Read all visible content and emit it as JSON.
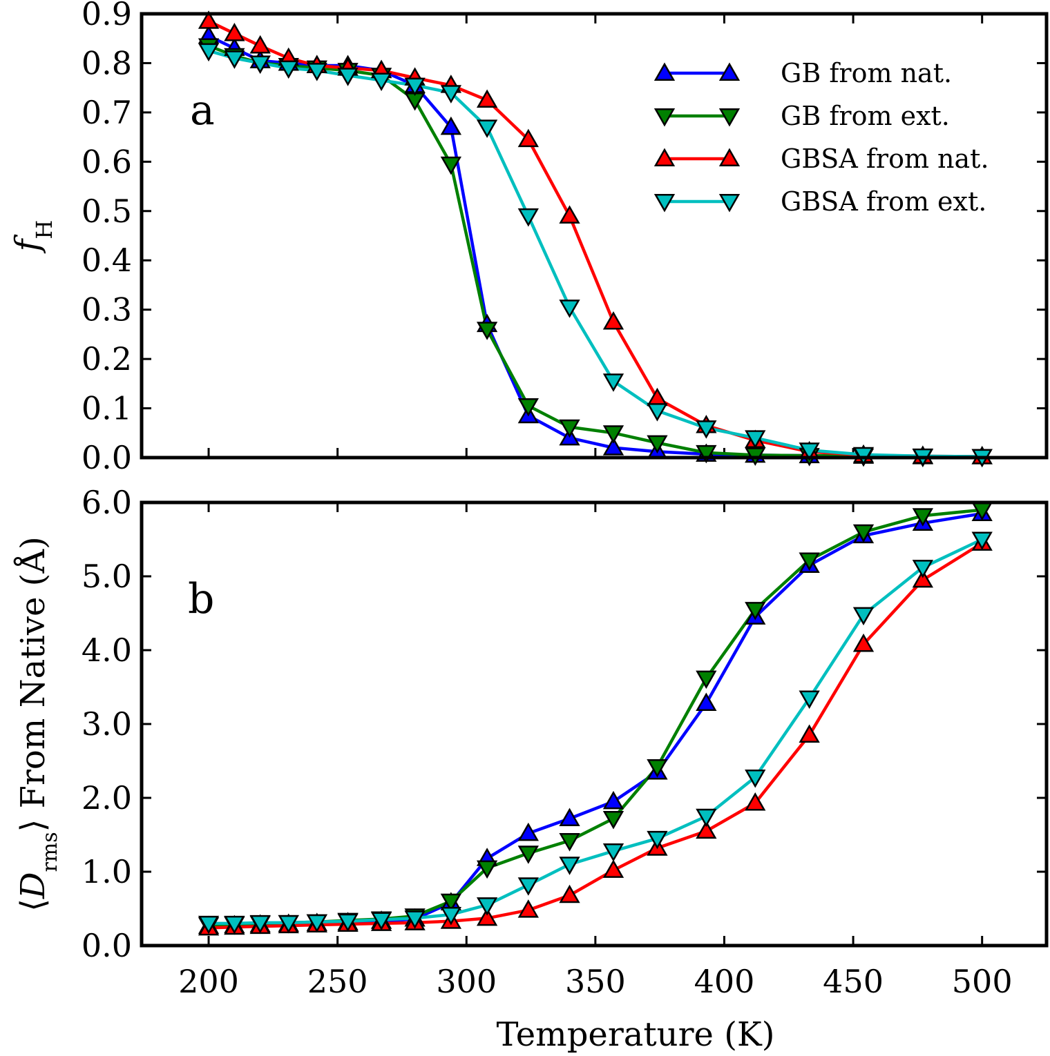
{
  "chart_data": [
    {
      "panel": "a",
      "type": "line",
      "ylabel_symbol": "f",
      "ylabel_subscript": "H",
      "ylim": [
        0.0,
        0.9
      ],
      "yticks": [
        "0.0",
        "0.1",
        "0.2",
        "0.3",
        "0.4",
        "0.5",
        "0.6",
        "0.7",
        "0.8",
        "0.9"
      ],
      "xlim": [
        174,
        525
      ],
      "x": [
        200,
        210,
        220,
        231,
        242,
        254,
        267,
        280,
        294,
        308,
        324,
        340,
        357,
        374,
        393,
        412,
        433,
        454,
        477,
        500
      ],
      "legend_position": "top-right",
      "series": [
        {
          "name": "GB from nat.",
          "color": "#0000ff",
          "marker": "triangle-up",
          "values": [
            0.855,
            0.83,
            0.805,
            0.8,
            0.795,
            0.795,
            0.785,
            0.755,
            0.67,
            0.27,
            0.085,
            0.04,
            0.02,
            0.012,
            0.007,
            0.005,
            0.004,
            0.003,
            0.002,
            0.002
          ]
        },
        {
          "name": "GB from ext.",
          "color": "#008000",
          "marker": "triangle-down",
          "values": [
            0.835,
            0.815,
            0.8,
            0.795,
            0.79,
            0.785,
            0.775,
            0.725,
            0.595,
            0.26,
            0.105,
            0.062,
            0.05,
            0.03,
            0.01,
            0.005,
            0.004,
            0.003,
            0.002,
            0.002
          ]
        },
        {
          "name": "GBSA from nat.",
          "color": "#ff0000",
          "marker": "triangle-up",
          "values": [
            0.885,
            0.86,
            0.835,
            0.81,
            0.795,
            0.79,
            0.785,
            0.77,
            0.755,
            0.725,
            0.645,
            0.49,
            0.275,
            0.12,
            0.065,
            0.035,
            0.012,
            0.005,
            0.003,
            0.002
          ]
        },
        {
          "name": "GBSA from ext.",
          "color": "#00bfbf",
          "marker": "triangle-down",
          "values": [
            0.825,
            0.81,
            0.8,
            0.79,
            0.785,
            0.775,
            0.765,
            0.755,
            0.74,
            0.67,
            0.49,
            0.305,
            0.155,
            0.095,
            0.06,
            0.04,
            0.015,
            0.006,
            0.003,
            0.002
          ]
        }
      ]
    },
    {
      "panel": "b",
      "type": "line",
      "ylabel_left": "⟨",
      "ylabel_symbol": "D",
      "ylabel_subscript": "rms",
      "ylabel_right": "⟩ From Native (Å)",
      "xlabel": "Temperature (K)",
      "ylim": [
        0.0,
        6.0
      ],
      "yticks": [
        "0.0",
        "1.0",
        "2.0",
        "3.0",
        "4.0",
        "5.0",
        "6.0"
      ],
      "xlim": [
        174,
        525
      ],
      "xticks": [
        "200",
        "250",
        "300",
        "350",
        "400",
        "450",
        "500"
      ],
      "x": [
        200,
        210,
        220,
        231,
        242,
        254,
        267,
        280,
        294,
        308,
        324,
        340,
        357,
        374,
        393,
        412,
        433,
        454,
        477,
        500
      ],
      "series": [
        {
          "name": "GB from nat.",
          "color": "#0000ff",
          "marker": "triangle-up",
          "values": [
            0.26,
            0.27,
            0.28,
            0.29,
            0.3,
            0.31,
            0.33,
            0.36,
            0.58,
            1.18,
            1.52,
            1.72,
            1.95,
            2.35,
            3.28,
            4.45,
            5.15,
            5.55,
            5.72,
            5.85
          ]
        },
        {
          "name": "GB from ext.",
          "color": "#008000",
          "marker": "triangle-down",
          "values": [
            0.28,
            0.29,
            0.3,
            0.31,
            0.32,
            0.34,
            0.36,
            0.4,
            0.6,
            1.05,
            1.25,
            1.42,
            1.72,
            2.42,
            3.62,
            4.55,
            5.22,
            5.6,
            5.82,
            5.9
          ]
        },
        {
          "name": "GBSA from nat.",
          "color": "#ff0000",
          "marker": "triangle-up",
          "values": [
            0.24,
            0.25,
            0.26,
            0.27,
            0.28,
            0.29,
            0.3,
            0.31,
            0.33,
            0.37,
            0.48,
            0.68,
            1.02,
            1.32,
            1.55,
            1.93,
            2.85,
            4.08,
            4.95,
            5.45
          ]
        },
        {
          "name": "GBSA from ext.",
          "color": "#00bfbf",
          "marker": "triangle-down",
          "values": [
            0.3,
            0.3,
            0.31,
            0.31,
            0.32,
            0.33,
            0.35,
            0.37,
            0.42,
            0.55,
            0.82,
            1.1,
            1.28,
            1.45,
            1.75,
            2.28,
            3.35,
            4.48,
            5.12,
            5.5
          ]
        }
      ]
    }
  ]
}
